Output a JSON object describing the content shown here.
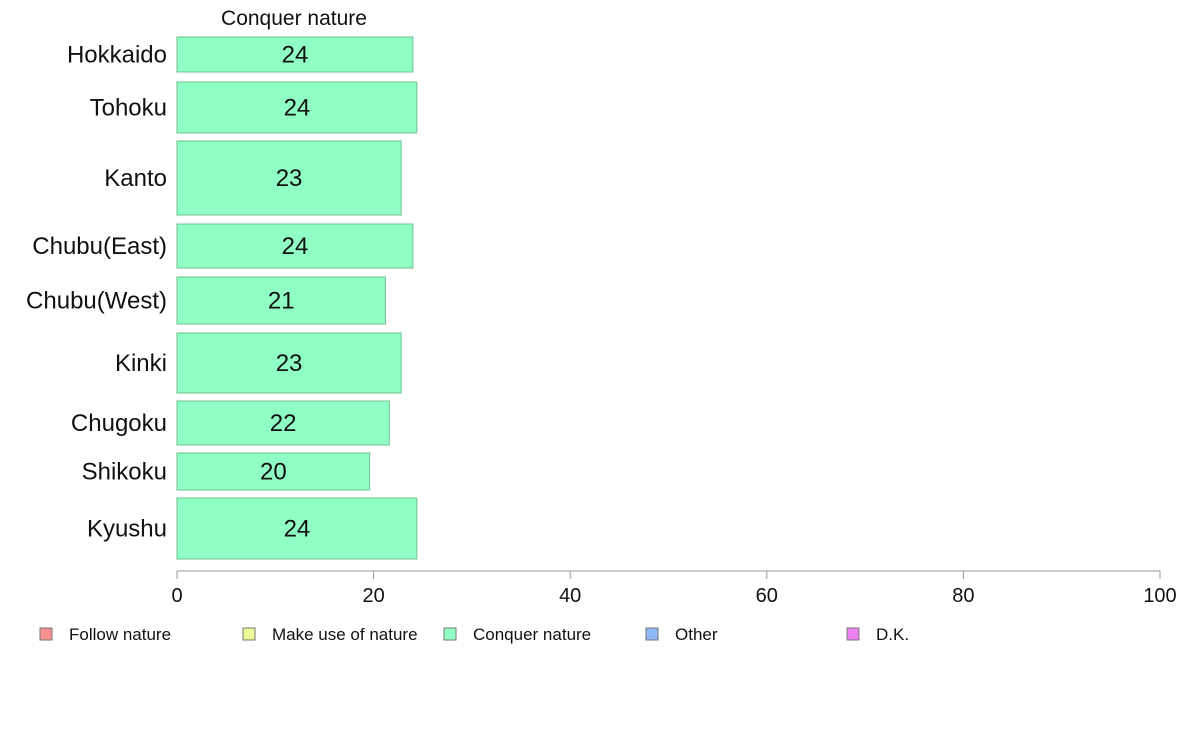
{
  "chart_data": {
    "type": "bar",
    "orientation": "horizontal",
    "title": "Conquer nature",
    "categories": [
      "Hokkaido",
      "Tohoku",
      "Kanto",
      "Chubu(East)",
      "Chubu(West)",
      "Kinki",
      "Chugoku",
      "Shikoku",
      "Kyushu"
    ],
    "values": [
      24,
      24.4,
      22.8,
      24,
      21.2,
      22.8,
      21.6,
      19.6,
      24.4
    ],
    "value_labels": [
      "24",
      "24",
      "23",
      "24",
      "21",
      "23",
      "22",
      "20",
      "24"
    ],
    "xlim": [
      0,
      100
    ],
    "xticks": [
      0,
      20,
      40,
      60,
      80,
      100
    ],
    "bar_color": "#8fffc4",
    "bar_edge_color": "#6fbf92",
    "legend_position": "bottom",
    "legend": [
      {
        "label": "Follow nature",
        "color": "#f7908e"
      },
      {
        "label": "Make use of nature",
        "color": "#eefa95"
      },
      {
        "label": "Conquer nature",
        "color": "#8fffc4"
      },
      {
        "label": "Other",
        "color": "#8fb8f7"
      },
      {
        "label": "D.K.",
        "color": "#ee82f3"
      }
    ]
  }
}
